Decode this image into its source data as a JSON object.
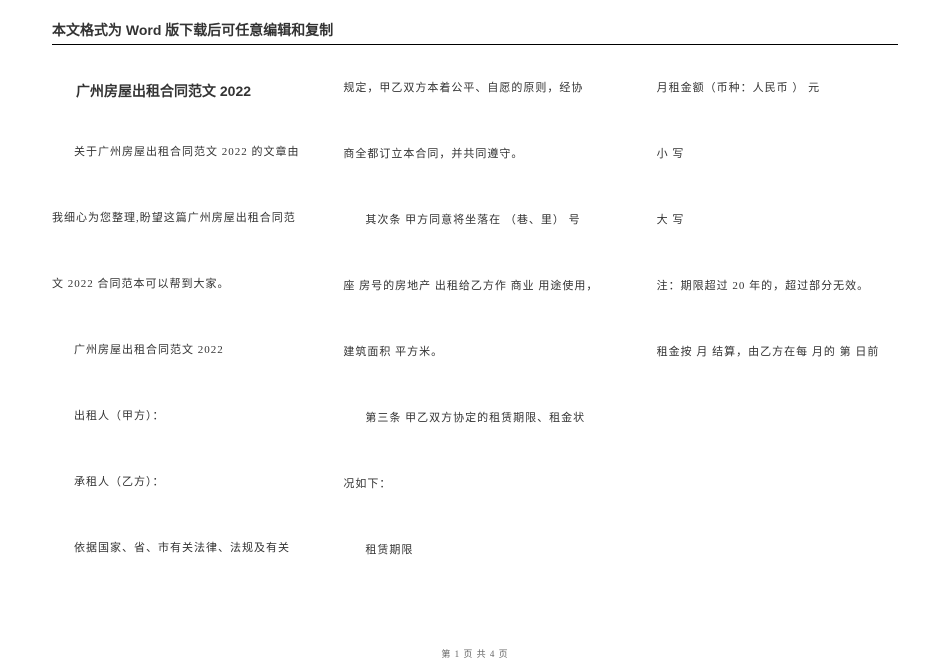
{
  "header": {
    "notice": "本文格式为 Word 版下载后可任意编辑和复制"
  },
  "doc": {
    "title": "广州房屋出租合同范文 2022",
    "paragraphs": [
      "关于广州房屋出租合同范文 2022 的文章由",
      "我细心为您整理,盼望这篇广州房屋出租合同范",
      "文 2022 合同范本可以帮到大家。",
      "广州房屋出租合同范文 2022",
      "出租人（甲方）：",
      "承租人（乙方）：",
      "依据国家、省、市有关法律、法规及有关",
      "规定，甲乙双方本着公平、自愿的原则，经协",
      "商全都订立本合同，并共同遵守。",
      "其次条 甲方同意将坐落在 （巷、里） 号",
      "座 房号的房地产 出租给乙方作 商业 用途使用，",
      "建筑面积 平方米。",
      "第三条 甲乙双方协定的租赁期限、租金状",
      "况如下：",
      "租赁期限",
      "月租金额（币种：人民币 ） 元",
      "小 写",
      "大 写",
      "注：期限超过 20 年的，超过部分无效。",
      "租金按 月 结算，由乙方在每 月的 第 日前"
    ]
  },
  "footer": {
    "text": "第 1 页 共 4 页"
  },
  "style": {
    "bg": "#ffffff",
    "text_color": "#333333",
    "header_fontsize": 14,
    "body_fontsize": 11,
    "title_fontsize": 14
  }
}
